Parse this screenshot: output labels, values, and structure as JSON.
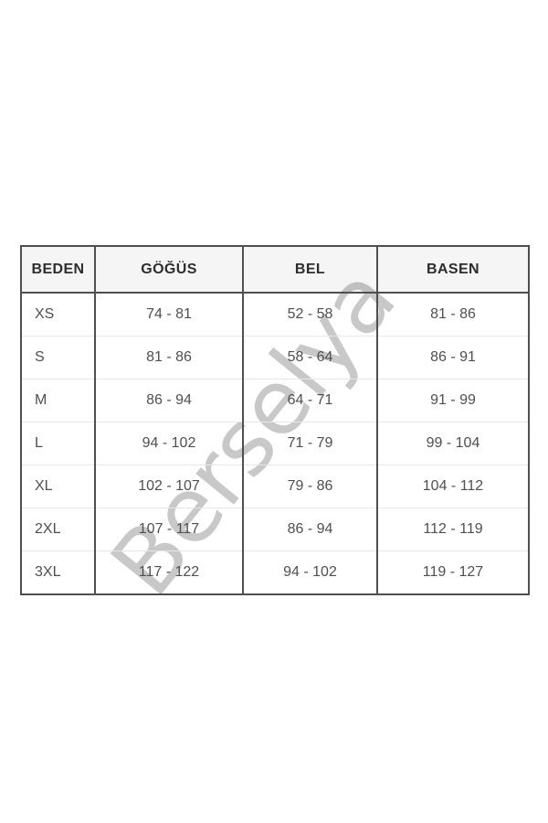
{
  "watermark": {
    "text": "Berselya",
    "color": "#c8c8c8"
  },
  "colors": {
    "border": "#4f4f4f",
    "row_divider": "#e7e7e7",
    "header_text": "#2d2d2d",
    "body_text": "#4f4f4f",
    "header_bg_tint": "rgba(0,0,0,0.04)",
    "watermark": "#c8c8c8",
    "page_background": "#ffffff"
  },
  "chart_data": {
    "type": "table",
    "title": "",
    "columns": [
      "BEDEN",
      "GÖĞÜS",
      "BEL",
      "BASEN"
    ],
    "rows": [
      [
        "XS",
        "74 - 81",
        "52 - 58",
        "81 - 86"
      ],
      [
        "S",
        "81 - 86",
        "58 - 64",
        "86 - 91"
      ],
      [
        "M",
        "86 - 94",
        "64 - 71",
        "91 - 99"
      ],
      [
        "L",
        "94 - 102",
        "71 - 79",
        "99 - 104"
      ],
      [
        "XL",
        "102 - 107",
        "79 - 86",
        "104 - 112"
      ],
      [
        "2XL",
        "107 - 117",
        "86 - 94",
        "112 - 119"
      ],
      [
        "3XL",
        "117 - 122",
        "94 - 102",
        "119 - 127"
      ]
    ]
  }
}
